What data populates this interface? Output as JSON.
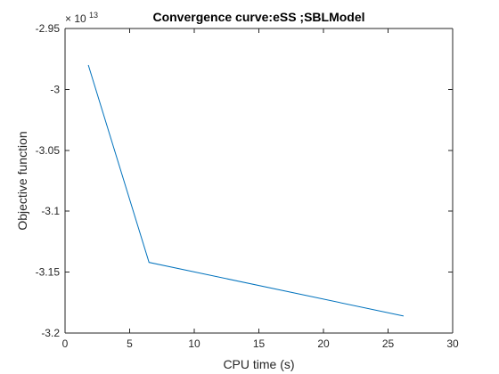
{
  "chart_data": {
    "type": "line",
    "title": "Convergence curve:eSS ;SBLModel",
    "xlabel": "CPU time (s)",
    "ylabel": "Objective function",
    "exponent_base": "× 10",
    "exponent_power": "13",
    "xlim": [
      0,
      30
    ],
    "ylim": [
      -3.2,
      -2.95
    ],
    "xticks": [
      0,
      5,
      10,
      15,
      20,
      25,
      30
    ],
    "xtick_labels": [
      "0",
      "5",
      "10",
      "15",
      "20",
      "25",
      "30"
    ],
    "yticks": [
      -3.2,
      -3.15,
      -3.1,
      -3.05,
      -3,
      -2.95
    ],
    "ytick_labels": [
      "-3.2",
      "-3.15",
      "-3.1",
      "-3.05",
      "-3",
      "-2.95"
    ],
    "grid": false,
    "series": [
      {
        "color": "#0072bd",
        "x": [
          1.8,
          6.5,
          26.2
        ],
        "y": [
          -2.98,
          -3.142,
          -3.186
        ]
      }
    ]
  }
}
